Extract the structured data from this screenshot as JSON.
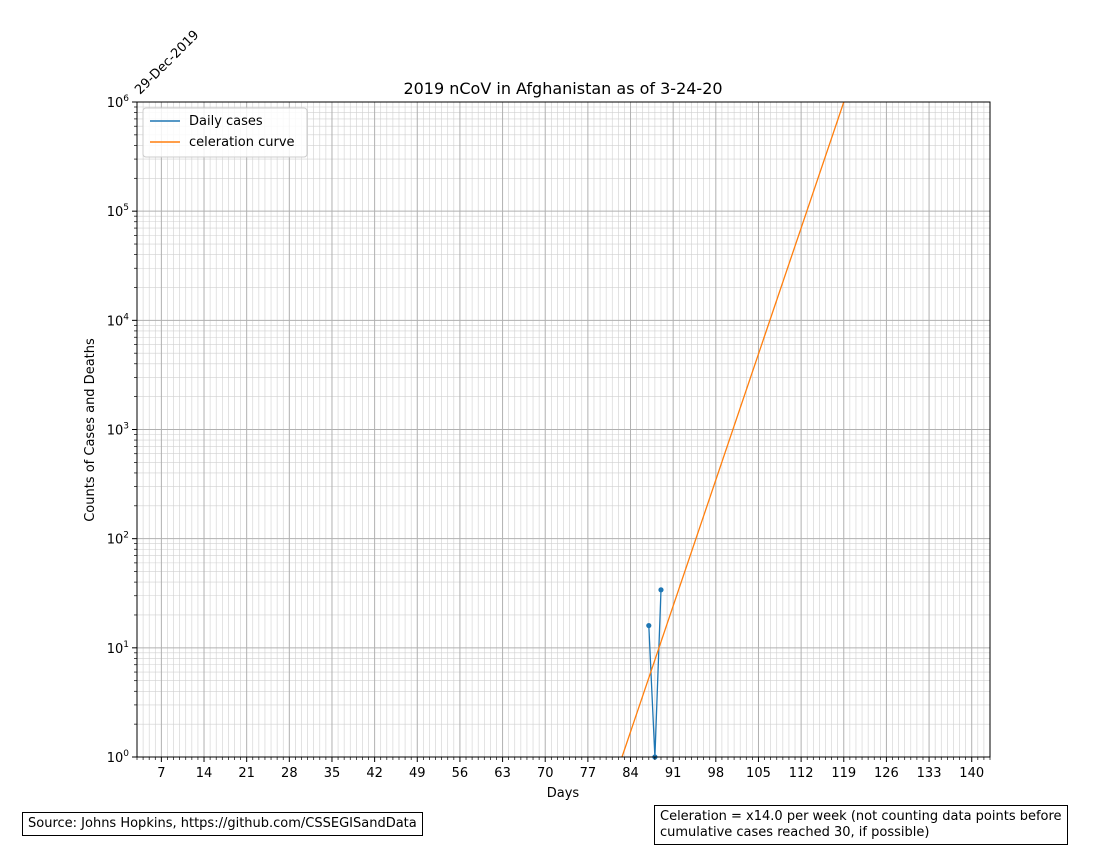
{
  "chart_data": {
    "type": "line",
    "title": "2019 nCoV in Afghanistan as of 3-24-20",
    "xlabel": "Days",
    "ylabel": "Counts of Cases and Deaths",
    "date_label": "29-Dec-2019",
    "xlim": [
      3,
      143
    ],
    "ylim": [
      1,
      1000000
    ],
    "yscale": "log",
    "grid": true,
    "legend_position": "top-left",
    "x_ticks": [
      7,
      14,
      21,
      28,
      35,
      42,
      49,
      56,
      63,
      70,
      77,
      84,
      91,
      98,
      105,
      112,
      119,
      126,
      133,
      140
    ],
    "y_ticks": [
      {
        "base": "10",
        "exp": "0",
        "value": 1
      },
      {
        "base": "10",
        "exp": "1",
        "value": 10
      },
      {
        "base": "10",
        "exp": "2",
        "value": 100
      },
      {
        "base": "10",
        "exp": "3",
        "value": 1000
      },
      {
        "base": "10",
        "exp": "4",
        "value": 10000
      },
      {
        "base": "10",
        "exp": "5",
        "value": 100000
      },
      {
        "base": "10",
        "exp": "6",
        "value": 1000000
      }
    ],
    "series": [
      {
        "name": "Daily cases",
        "color": "#1f77b4",
        "marker": "dot",
        "x": [
          87,
          88,
          89
        ],
        "y": [
          16,
          1,
          34
        ]
      },
      {
        "name": "celeration curve",
        "color": "#ff7f0e",
        "marker": "none",
        "x": [
          82.6,
          119
        ],
        "y": [
          1,
          1000000
        ]
      }
    ]
  },
  "notes": {
    "source": "Source: Johns Hopkins, https://github.com/CSSEGISandData",
    "celeration_line1": "Celeration = x14.0 per week (not counting data points before",
    "celeration_line2": "cumulative cases reached 30, if possible)"
  }
}
